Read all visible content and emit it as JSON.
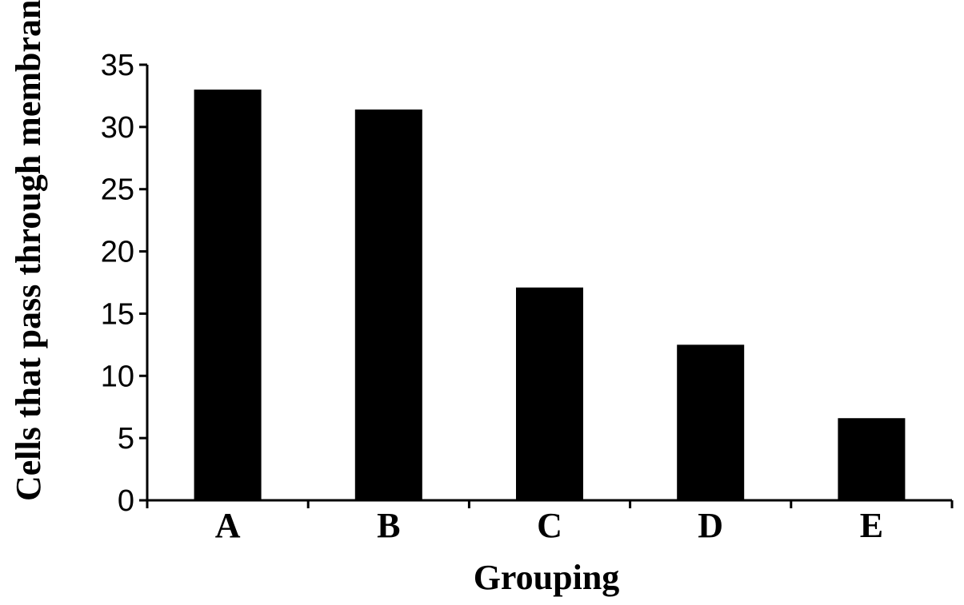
{
  "chart_data": {
    "type": "bar",
    "title": "",
    "xlabel": "Grouping",
    "ylabel": "Cells that pass through membrane",
    "categories": [
      "A",
      "B",
      "C",
      "D",
      "E"
    ],
    "values": [
      33.0,
      31.4,
      17.1,
      12.5,
      6.6
    ],
    "ylim": [
      0,
      35
    ],
    "yticks": [
      0,
      5,
      10,
      15,
      20,
      25,
      30,
      35
    ],
    "bar_color": "#000000",
    "grid": false,
    "legend": "none"
  }
}
